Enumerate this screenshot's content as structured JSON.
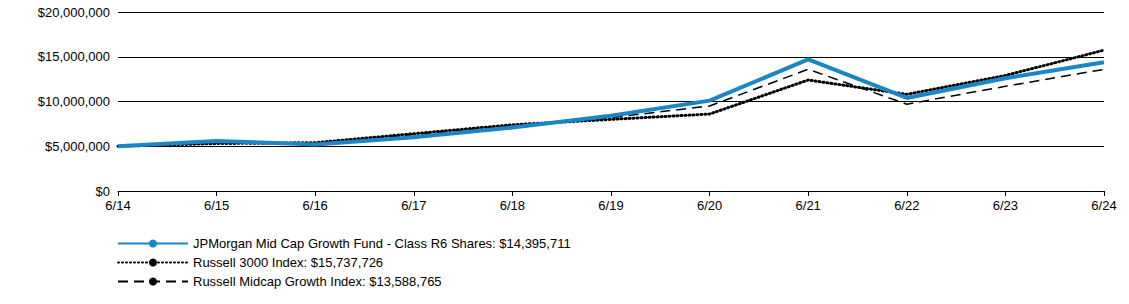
{
  "chart_data": {
    "type": "line",
    "x": [
      "6/14",
      "6/15",
      "6/16",
      "6/17",
      "6/18",
      "6/19",
      "6/20",
      "6/21",
      "6/22",
      "6/23",
      "6/24"
    ],
    "series": [
      {
        "name": "JPMorgan Mid Cap Growth Fund - Class R6 Shares: $14,395,711",
        "color": "#1a86c8",
        "line_style": "solid",
        "values": [
          5000000,
          5600000,
          5200000,
          6000000,
          7100000,
          8400000,
          10100000,
          14700000,
          10400000,
          12600000,
          14395711
        ]
      },
      {
        "name": "Russell 3000 Index: $15,737,726",
        "color": "#000000",
        "line_style": "dotted",
        "values": [
          5000000,
          5300000,
          5400000,
          6400000,
          7400000,
          8000000,
          8600000,
          12400000,
          10800000,
          12900000,
          15737726
        ]
      },
      {
        "name": "Russell Midcap Growth Index: $13,588,765",
        "color": "#000000",
        "line_style": "dashed",
        "values": [
          5000000,
          5400000,
          5200000,
          6300000,
          7300000,
          8200000,
          9500000,
          13600000,
          9700000,
          11700000,
          13588765
        ]
      }
    ],
    "ylim": [
      0,
      20000000
    ],
    "yticks": [
      {
        "value": 0,
        "label": "$0"
      },
      {
        "value": 5000000,
        "label": "$5,000,000"
      },
      {
        "value": 10000000,
        "label": "$10,000,000"
      },
      {
        "value": 15000000,
        "label": "$15,000,000"
      },
      {
        "value": 20000000,
        "label": "$20,000,000"
      }
    ],
    "grid": true,
    "legend": "bottom"
  }
}
